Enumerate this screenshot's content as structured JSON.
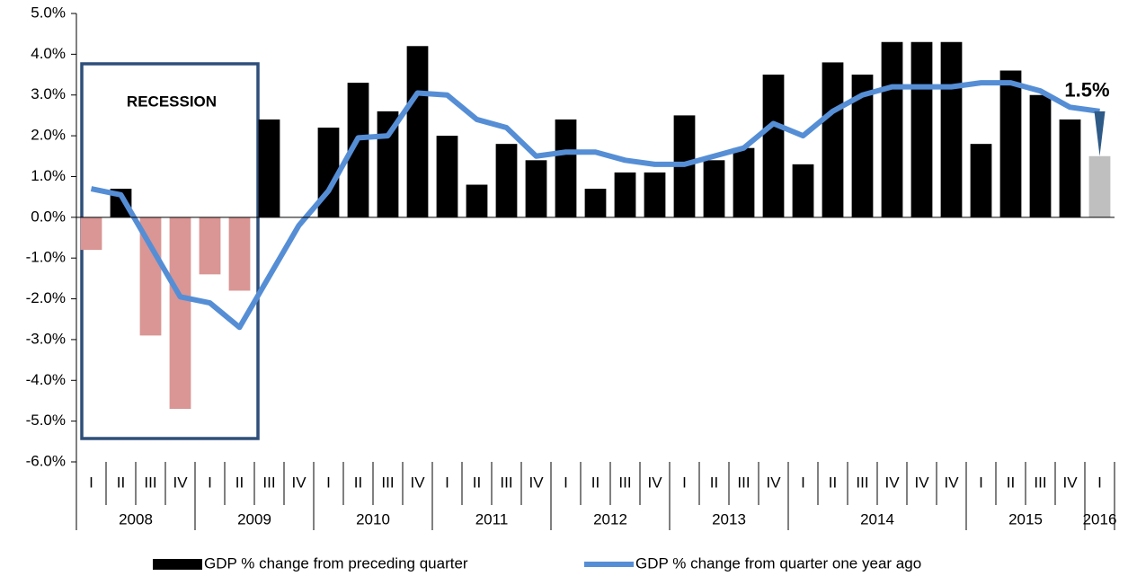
{
  "chart_data": {
    "type": "bar",
    "categories": [
      "I",
      "II",
      "III",
      "IV",
      "I",
      "II",
      "III",
      "IV",
      "I",
      "II",
      "III",
      "IV",
      "I",
      "II",
      "III",
      "IV",
      "I",
      "II",
      "III",
      "IV",
      "I",
      "II",
      "III",
      "IV",
      "I",
      "II",
      "III",
      "IV",
      "IV",
      "IV",
      "I",
      "II",
      "III",
      "IV",
      "I"
    ],
    "groups": [
      {
        "label": "2008",
        "categories": 4
      },
      {
        "label": "2009",
        "categories": 4
      },
      {
        "label": "2010",
        "categories": 4
      },
      {
        "label": "2011",
        "categories": 4
      },
      {
        "label": "2012",
        "categories": 4
      },
      {
        "label": "2013",
        "categories": 4
      },
      {
        "label": "2014",
        "categories": 6
      },
      {
        "label": "2015",
        "categories": 4
      },
      {
        "label": "2016",
        "categories": 1
      }
    ],
    "series": [
      {
        "name": "GDP % change from preceding quarter",
        "type": "bar",
        "color": "#000000",
        "colors": [
          "#d99694",
          "#000000",
          "#d99694",
          "#d99694",
          "#d99694",
          "#d99694",
          "#000000",
          "#000000",
          "#000000",
          "#000000",
          "#000000",
          "#000000",
          "#000000",
          "#000000",
          "#000000",
          "#000000",
          "#000000",
          "#000000",
          "#000000",
          "#000000",
          "#000000",
          "#000000",
          "#000000",
          "#000000",
          "#000000",
          "#000000",
          "#000000",
          "#000000",
          "#000000",
          "#000000",
          "#000000",
          "#000000",
          "#000000",
          "#000000",
          "#bfbfbf"
        ],
        "values": [
          -0.8,
          0.7,
          -2.9,
          -4.7,
          -1.4,
          -1.8,
          2.4,
          null,
          2.2,
          3.3,
          2.6,
          4.2,
          2.0,
          0.8,
          1.8,
          1.4,
          2.4,
          0.7,
          1.1,
          1.1,
          2.5,
          1.4,
          1.7,
          3.5,
          1.3,
          3.8,
          3.5,
          4.3,
          4.3,
          4.3,
          1.8,
          3.6,
          3.0,
          2.4,
          1.5
        ]
      },
      {
        "name": "GDP % change from quarter one year ago",
        "type": "line",
        "color": "#558ed5",
        "values": [
          0.7,
          0.55,
          -0.7,
          -1.95,
          -2.1,
          -2.7,
          -1.45,
          -0.2,
          0.65,
          1.95,
          2.0,
          3.05,
          3.0,
          2.4,
          2.2,
          1.5,
          1.6,
          1.6,
          1.4,
          1.3,
          1.3,
          1.5,
          1.7,
          2.3,
          2.0,
          2.6,
          3.0,
          3.2,
          3.2,
          3.2,
          3.3,
          3.3,
          3.1,
          2.7,
          2.6
        ]
      }
    ],
    "ylim": [
      -6,
      5
    ],
    "yticks": [
      {
        "value": -6,
        "label": "-6.0%"
      },
      {
        "value": -5,
        "label": "-5.0%"
      },
      {
        "value": -4,
        "label": "-4.0%"
      },
      {
        "value": -3,
        "label": "-3.0%"
      },
      {
        "value": -2,
        "label": "-2.0%"
      },
      {
        "value": -1,
        "label": "-1.0%"
      },
      {
        "value": 0,
        "label": "0.0%"
      },
      {
        "value": 1,
        "label": "1.0%"
      },
      {
        "value": 2,
        "label": "2.0%"
      },
      {
        "value": 3,
        "label": "3.0%"
      },
      {
        "value": 4,
        "label": "4.0%"
      },
      {
        "value": 5,
        "label": "5.0%"
      }
    ],
    "annotations": {
      "recession": "RECESSION",
      "latest": "1.5%"
    },
    "legend": "bottom",
    "grid": false
  }
}
